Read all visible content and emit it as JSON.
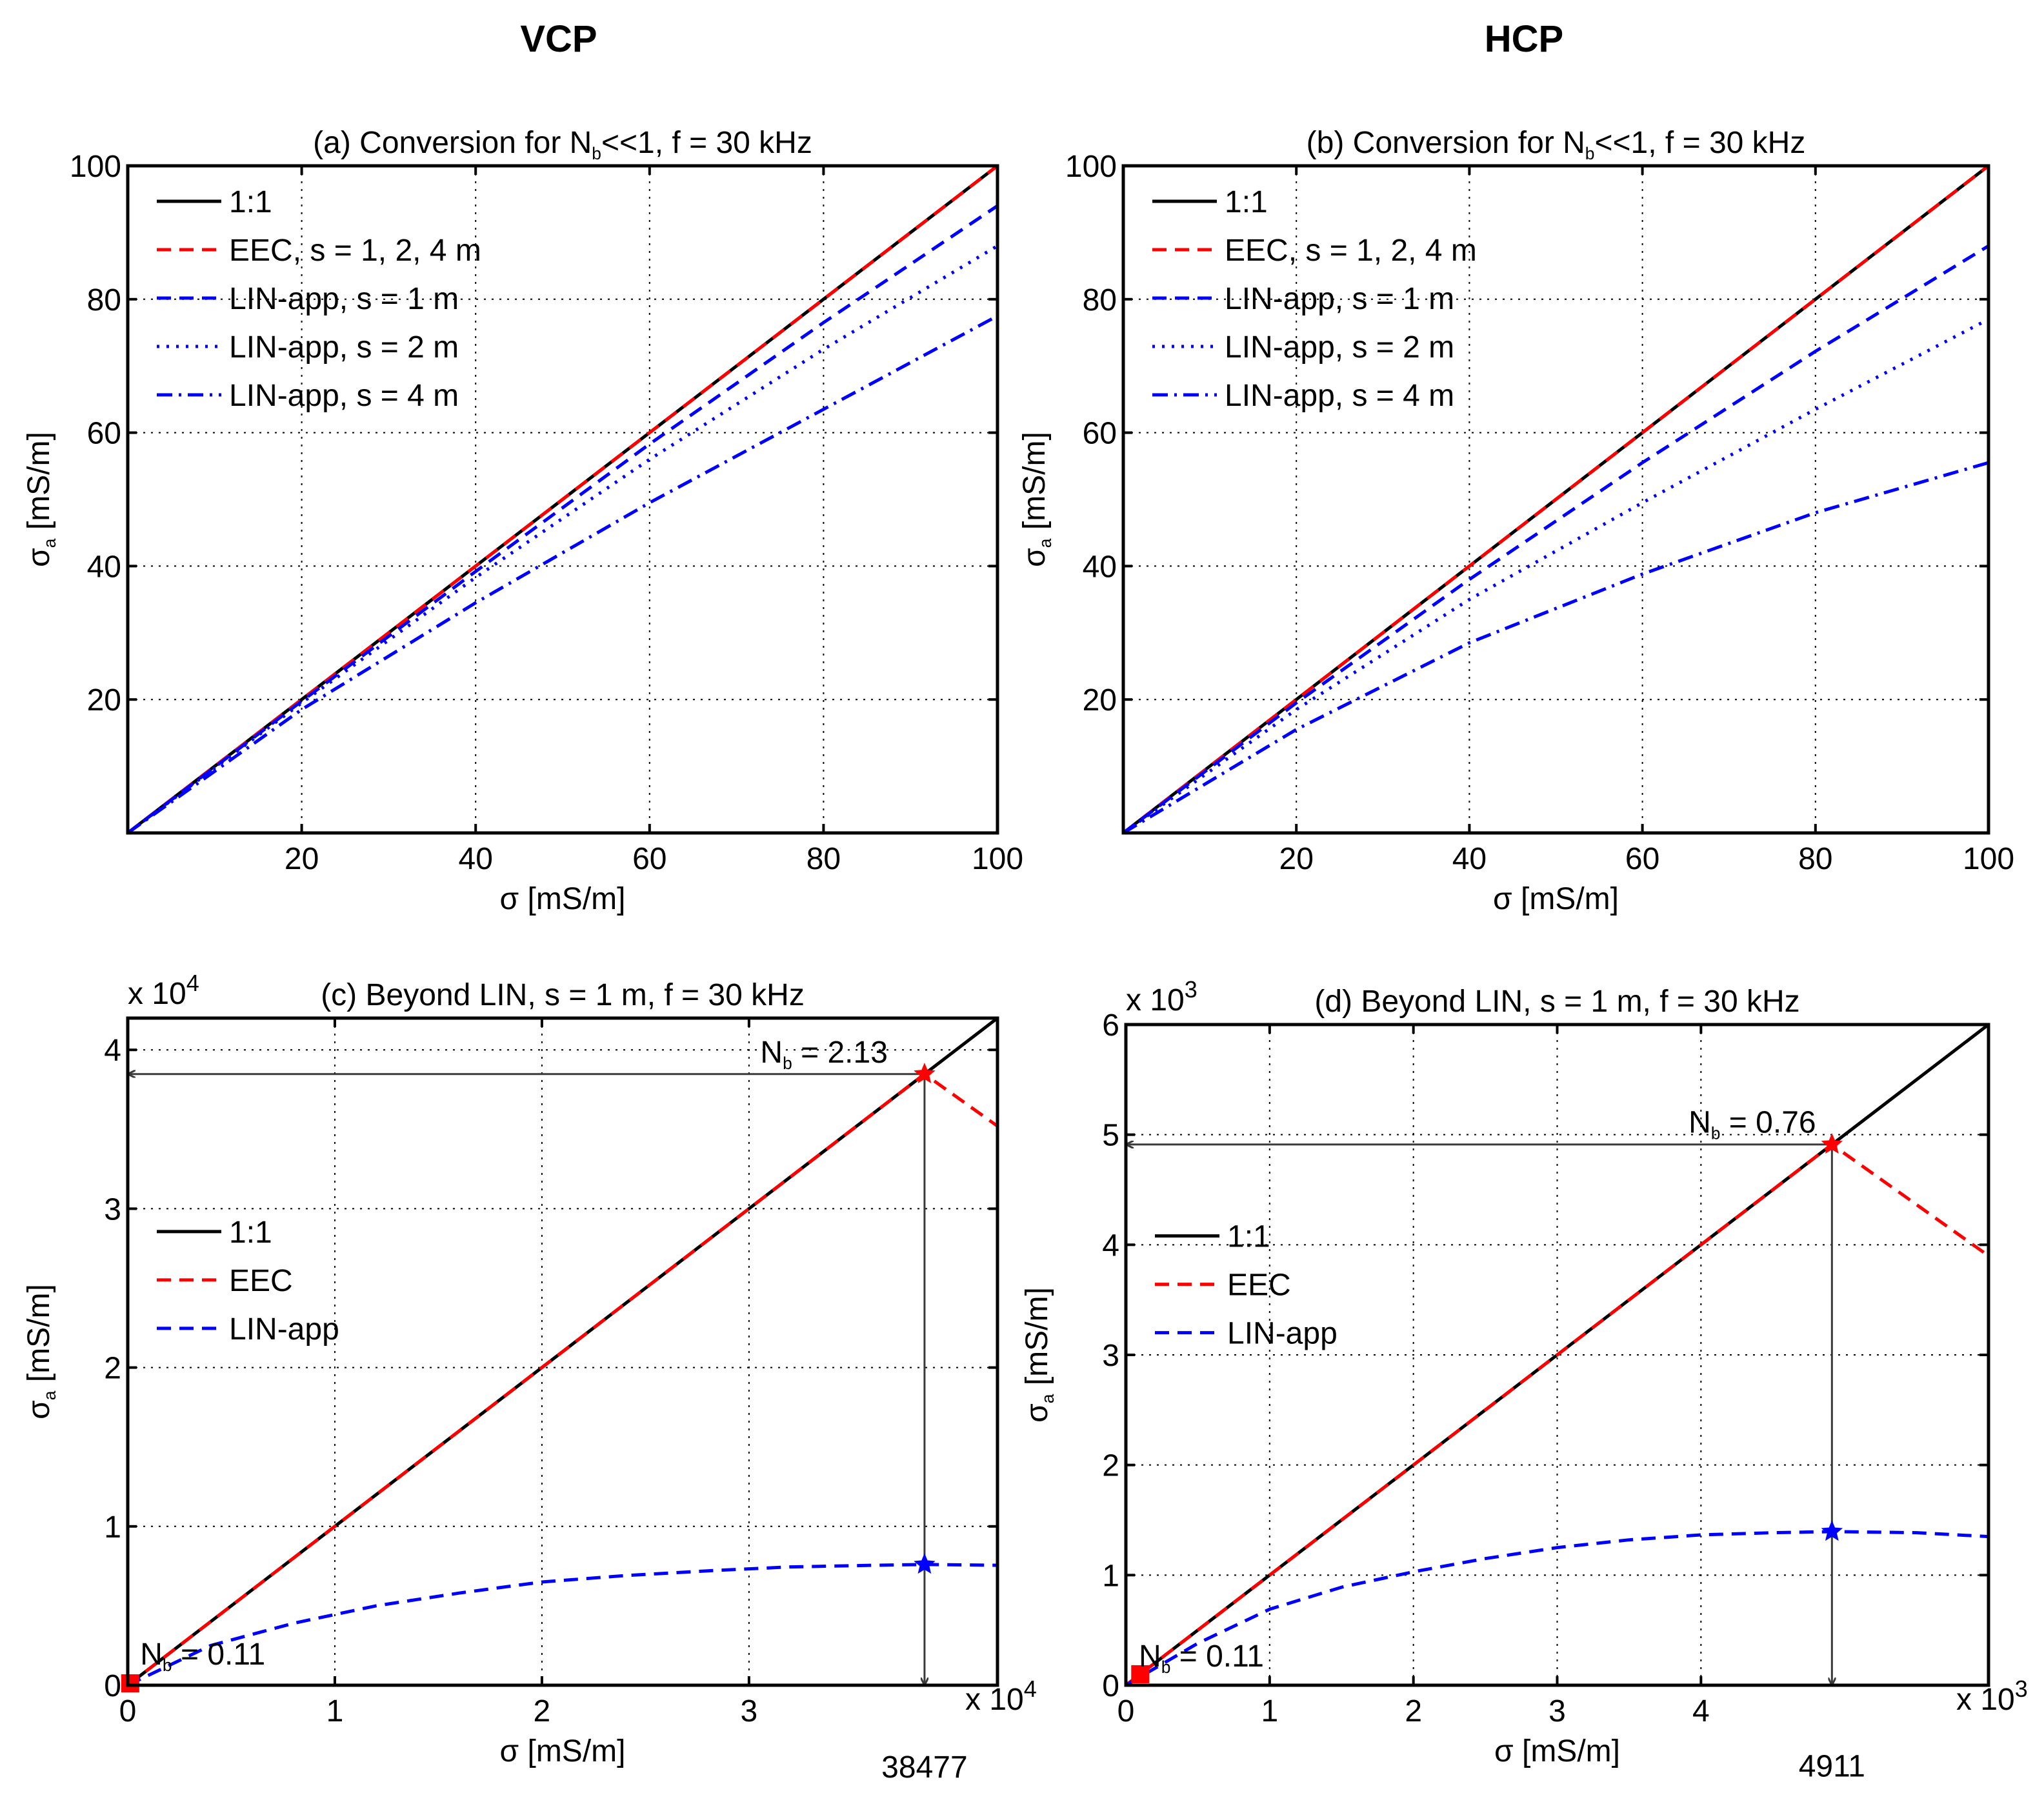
{
  "column_titles": [
    "VCP",
    "HCP"
  ],
  "chart_data": [
    {
      "id": "a",
      "type": "line",
      "column": "VCP",
      "title": "(a) Conversion for N",
      "title_sub": "b",
      "title_tail": "<<1, f = 30 kHz",
      "xlabel": "σ [mS/m]",
      "ylabel": "σ",
      "ylabel_sub": "a",
      "ylabel_tail": " [mS/m]",
      "xlim": [
        0,
        100
      ],
      "ylim": [
        0,
        100
      ],
      "xticks": [
        20,
        40,
        60,
        80,
        100
      ],
      "yticks": [
        20,
        40,
        60,
        80,
        100
      ],
      "xtick_labels": [
        "20",
        "40",
        "60",
        "80",
        "100"
      ],
      "ytick_labels": [
        "20",
        "40",
        "60",
        "80",
        "100"
      ],
      "x_exponent": "",
      "y_exponent": "",
      "grid": true,
      "legend_position": "top-left",
      "series": [
        {
          "name": "1:1",
          "color": "#000000",
          "dash": "solid",
          "x": [
            0,
            100
          ],
          "y": [
            0,
            100
          ]
        },
        {
          "name": "EEC, s = 1, 2, 4 m",
          "color": "#ff0000",
          "dash": "dashed",
          "x": [
            0,
            100
          ],
          "y": [
            0,
            100
          ]
        },
        {
          "name": "LIN-app, s = 1 m",
          "color": "#0000ff",
          "dash": "dashed",
          "x": [
            0,
            20,
            40,
            60,
            80,
            100
          ],
          "y": [
            0,
            19.75,
            39.2,
            58.3,
            76.5,
            94
          ]
        },
        {
          "name": "LIN-app, s = 2 m",
          "color": "#0000ff",
          "dash": "dotted",
          "x": [
            0,
            20,
            40,
            60,
            80,
            100
          ],
          "y": [
            0,
            19.5,
            38.3,
            56,
            72.5,
            88
          ]
        },
        {
          "name": "LIN-app, s = 4 m",
          "color": "#0000ff",
          "dash": "dashdot",
          "x": [
            0,
            20,
            40,
            60,
            80,
            100
          ],
          "y": [
            0,
            18.5,
            34.5,
            49.5,
            63.5,
            77.5
          ]
        }
      ],
      "markers": [],
      "arrows": [],
      "annotations": [],
      "legend_entries": [
        0,
        1,
        2,
        3,
        4
      ]
    },
    {
      "id": "b",
      "type": "line",
      "column": "HCP",
      "title": "(b) Conversion for N",
      "title_sub": "b",
      "title_tail": "<<1, f = 30 kHz",
      "xlabel": "σ [mS/m]",
      "ylabel": "σ",
      "ylabel_sub": "a",
      "ylabel_tail": " [mS/m]",
      "xlim": [
        0,
        100
      ],
      "ylim": [
        0,
        100
      ],
      "xticks": [
        20,
        40,
        60,
        80,
        100
      ],
      "yticks": [
        20,
        40,
        60,
        80,
        100
      ],
      "xtick_labels": [
        "20",
        "40",
        "60",
        "80",
        "100"
      ],
      "ytick_labels": [
        "20",
        "40",
        "60",
        "80",
        "100"
      ],
      "x_exponent": "",
      "y_exponent": "",
      "grid": true,
      "legend_position": "top-left",
      "series": [
        {
          "name": "1:1",
          "color": "#000000",
          "dash": "solid",
          "x": [
            0,
            100
          ],
          "y": [
            0,
            100
          ]
        },
        {
          "name": "EEC, s = 1, 2, 4 m",
          "color": "#ff0000",
          "dash": "dashed",
          "x": [
            0,
            100
          ],
          "y": [
            0,
            100
          ]
        },
        {
          "name": "LIN-app, s = 1 m",
          "color": "#0000ff",
          "dash": "dashed",
          "x": [
            0,
            20,
            40,
            60,
            80,
            100
          ],
          "y": [
            0,
            19.5,
            38,
            55.5,
            72.2,
            88
          ]
        },
        {
          "name": "LIN-app, s = 2 m",
          "color": "#0000ff",
          "dash": "dotted",
          "x": [
            0,
            20,
            40,
            60,
            80,
            100
          ],
          "y": [
            0,
            18.5,
            35,
            49.5,
            63.5,
            77
          ]
        },
        {
          "name": "LIN-app, s = 4 m",
          "color": "#0000ff",
          "dash": "dashdot",
          "x": [
            0,
            20,
            40,
            60,
            80,
            100
          ],
          "y": [
            0,
            15.5,
            28.5,
            38.8,
            48,
            55.5
          ]
        }
      ],
      "markers": [],
      "arrows": [],
      "annotations": [],
      "legend_entries": [
        0,
        1,
        2,
        3,
        4
      ]
    },
    {
      "id": "c",
      "type": "line",
      "column": "VCP",
      "title": "(c) Beyond LIN, s = 1 m, f = 30 kHz",
      "title_sub": "",
      "title_tail": "",
      "xlabel": "σ [mS/m]",
      "ylabel": "σ",
      "ylabel_sub": "a",
      "ylabel_tail": " [mS/m]",
      "xlim": [
        0,
        42000
      ],
      "ylim": [
        0,
        42000
      ],
      "xticks": [
        0,
        10000,
        20000,
        30000
      ],
      "yticks": [
        0,
        10000,
        20000,
        30000,
        40000
      ],
      "xtick_labels": [
        "0",
        "1",
        "2",
        "3"
      ],
      "ytick_labels": [
        "0",
        "1",
        "2",
        "3",
        "4"
      ],
      "x_exponent": "x 10",
      "x_exponent_power": "4",
      "y_exponent": "x 10",
      "y_exponent_power": "4",
      "grid": true,
      "legend_position": "middle-left",
      "series": [
        {
          "name": "1:1",
          "color": "#000000",
          "dash": "solid",
          "x": [
            0,
            42000
          ],
          "y": [
            0,
            42000
          ]
        },
        {
          "name": "EEC",
          "color": "#ff0000",
          "dash": "dashed",
          "x": [
            0,
            38477,
            42000
          ],
          "y": [
            0,
            38477,
            35200
          ]
        },
        {
          "name": "LIN-app",
          "color": "#0000ff",
          "dash": "dashed",
          "x": [
            0,
            4000,
            8000,
            12000,
            16000,
            20000,
            24000,
            28000,
            32000,
            36000,
            38477,
            42000
          ],
          "y": [
            0,
            2500,
            3900,
            5000,
            5800,
            6500,
            6900,
            7200,
            7450,
            7550,
            7600,
            7550
          ]
        }
      ],
      "markers": [
        {
          "x": 38477,
          "y": 38477,
          "color": "#ff0000",
          "shape": "star"
        },
        {
          "x": 38477,
          "y": 7600,
          "color": "#0000ff",
          "shape": "star"
        },
        {
          "x": 120,
          "y": 120,
          "color": "#ff0000",
          "shape": "square"
        }
      ],
      "arrows": [
        {
          "from": [
            38477,
            38477
          ],
          "to": [
            0,
            38477
          ]
        },
        {
          "from": [
            38477,
            38477
          ],
          "to": [
            38477,
            0
          ]
        }
      ],
      "annotations": [
        {
          "text": "N",
          "sub": "b",
          "tail": " = 2.13",
          "x": 36700,
          "y": 39200,
          "anchor": "end"
        },
        {
          "text": "N",
          "sub": "b",
          "tail": " = 0.11",
          "x": 600,
          "y": 1300,
          "anchor": "start"
        },
        {
          "text": "38477",
          "sub": "",
          "tail": "",
          "x": 38477,
          "y": -5800,
          "anchor": "middle"
        }
      ],
      "legend_entries": [
        0,
        1,
        2
      ]
    },
    {
      "id": "d",
      "type": "line",
      "column": "HCP",
      "title": "(d) Beyond LIN, s = 1 m, f = 30 kHz",
      "title_sub": "",
      "title_tail": "",
      "xlabel": "σ [mS/m]",
      "ylabel": "σ",
      "ylabel_sub": "a",
      "ylabel_tail": " [mS/m]",
      "xlim": [
        0,
        6000
      ],
      "ylim": [
        0,
        6000
      ],
      "xticks": [
        0,
        1000,
        2000,
        3000,
        4000
      ],
      "yticks": [
        0,
        1000,
        2000,
        3000,
        4000,
        5000,
        6000
      ],
      "xtick_labels": [
        "0",
        "1",
        "2",
        "3",
        "4"
      ],
      "ytick_labels": [
        "0",
        "1",
        "2",
        "3",
        "4",
        "5",
        "6"
      ],
      "x_exponent": "x 10",
      "x_exponent_power": "3",
      "y_exponent": "x 10",
      "y_exponent_power": "3",
      "grid": true,
      "legend_position": "middle-left",
      "series": [
        {
          "name": "1:1",
          "color": "#000000",
          "dash": "solid",
          "x": [
            0,
            6000
          ],
          "y": [
            0,
            6000
          ]
        },
        {
          "name": "EEC",
          "color": "#ff0000",
          "dash": "dashed",
          "x": [
            0,
            4911,
            6000
          ],
          "y": [
            0,
            4911,
            3900
          ]
        },
        {
          "name": "LIN-app",
          "color": "#0000ff",
          "dash": "dashed",
          "x": [
            0,
            500,
            1000,
            1500,
            2000,
            2500,
            3000,
            3500,
            4000,
            4500,
            4911,
            5500,
            6000
          ],
          "y": [
            0,
            380,
            690,
            890,
            1030,
            1150,
            1250,
            1320,
            1365,
            1385,
            1395,
            1385,
            1350
          ]
        }
      ],
      "markers": [
        {
          "x": 4911,
          "y": 4911,
          "color": "#ff0000",
          "shape": "star"
        },
        {
          "x": 4911,
          "y": 1395,
          "color": "#0000ff",
          "shape": "star"
        },
        {
          "x": 100,
          "y": 100,
          "color": "#ff0000",
          "shape": "square"
        }
      ],
      "arrows": [
        {
          "from": [
            4911,
            4911
          ],
          "to": [
            0,
            4911
          ]
        },
        {
          "from": [
            4911,
            4911
          ],
          "to": [
            4911,
            0
          ]
        }
      ],
      "annotations": [
        {
          "text": "N",
          "sub": "b",
          "tail": " = 0.76",
          "x": 4800,
          "y": 5020,
          "anchor": "end"
        },
        {
          "text": "N",
          "sub": "b",
          "tail": " = 0.11",
          "x": 90,
          "y": 170,
          "anchor": "start"
        },
        {
          "text": "4911",
          "sub": "",
          "tail": "",
          "x": 4911,
          "y": -830,
          "anchor": "middle"
        }
      ],
      "legend_entries": [
        0,
        1,
        2
      ]
    }
  ]
}
